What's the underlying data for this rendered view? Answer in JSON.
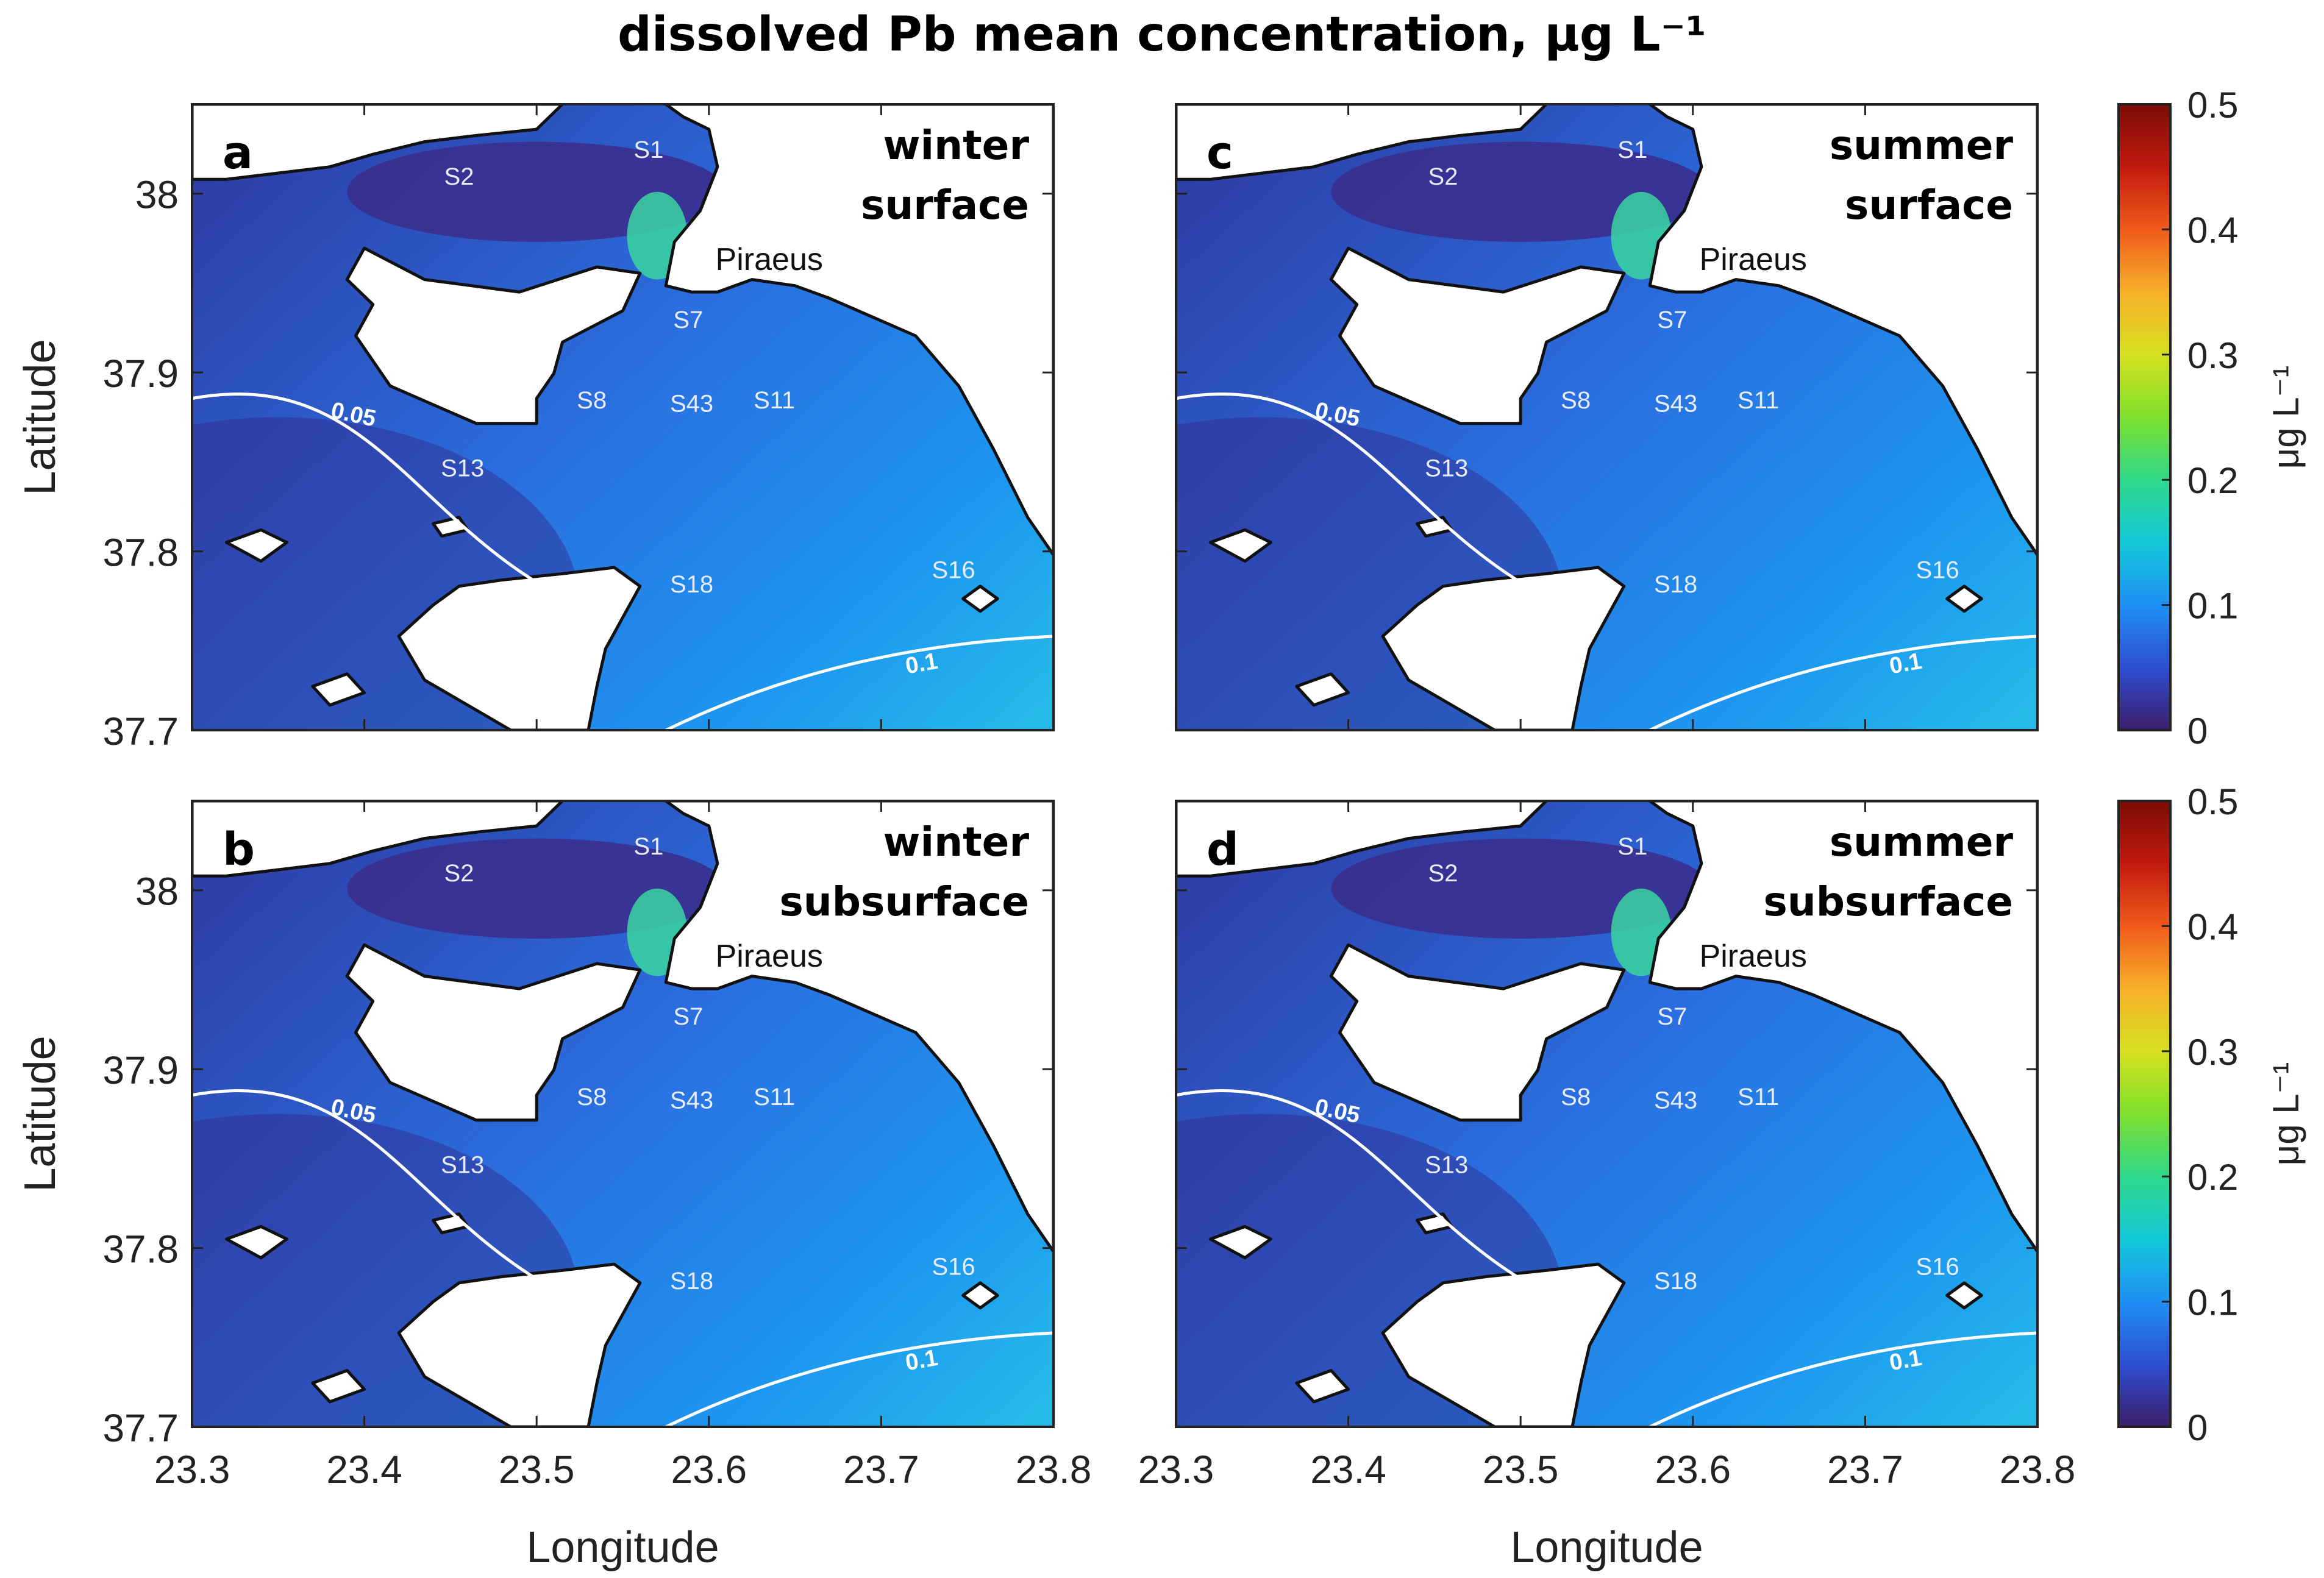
{
  "title": "dissolved Pb mean concentration, μg L⁻¹",
  "panels": [
    {
      "id": "a",
      "label": "a",
      "season": "winter",
      "layer": "surface"
    },
    {
      "id": "b",
      "label": "b",
      "season": "winter",
      "layer": "subsurface"
    },
    {
      "id": "c",
      "label": "c",
      "season": "summer",
      "layer": "surface"
    },
    {
      "id": "d",
      "label": "d",
      "season": "summer",
      "layer": "subsurface"
    }
  ],
  "axes": {
    "xlabel": "Longitude",
    "ylabel": "Latitude",
    "xlim": [
      23.3,
      23.8
    ],
    "ylim": [
      37.7,
      38.05
    ],
    "xticks": [
      "23.3",
      "23.4",
      "23.5",
      "23.6",
      "23.7",
      "23.8"
    ],
    "yticks": [
      "37.7",
      "37.8",
      "37.9",
      "38"
    ]
  },
  "colorbar": {
    "label": "μg L⁻¹",
    "ticks": [
      "0",
      "0.1",
      "0.2",
      "0.3",
      "0.4",
      "0.5"
    ],
    "range": [
      0,
      0.5
    ],
    "colormap": "jet",
    "colors": [
      "#3b1e6b",
      "#2f4fd4",
      "#1f8ff5",
      "#13c8d8",
      "#2fd88a",
      "#7ee02c",
      "#d6e01f",
      "#f7b02a",
      "#f05a1a",
      "#c21b10",
      "#7c0c06"
    ]
  },
  "map_labels": {
    "port": "Piraeus",
    "contour_005": "0.05",
    "contour_01": "0.1"
  },
  "stations": [
    {
      "name": "S1",
      "lon": 23.565,
      "lat": 38.02
    },
    {
      "name": "S2",
      "lon": 23.455,
      "lat": 38.005
    },
    {
      "name": "S7",
      "lon": 23.588,
      "lat": 37.925
    },
    {
      "name": "S8",
      "lon": 23.532,
      "lat": 37.88
    },
    {
      "name": "S43",
      "lon": 23.59,
      "lat": 37.878
    },
    {
      "name": "S11",
      "lon": 23.638,
      "lat": 37.88
    },
    {
      "name": "S13",
      "lon": 23.457,
      "lat": 37.842
    },
    {
      "name": "S16",
      "lon": 23.742,
      "lat": 37.785
    },
    {
      "name": "S18",
      "lon": 23.59,
      "lat": 37.777
    }
  ],
  "chart_data": {
    "type": "heatmap",
    "title": "dissolved Pb mean concentration, μg L⁻¹",
    "xlabel": "Longitude",
    "ylabel": "Latitude",
    "xlim": [
      23.3,
      23.8
    ],
    "ylim": [
      37.7,
      38.05
    ],
    "value_range": [
      0,
      0.5
    ],
    "contour_levels": [
      0.05,
      0.1
    ],
    "panels": [
      {
        "id": "a",
        "season": "winter",
        "depth": "surface",
        "min_approx": 0.03,
        "max_approx": 0.2
      },
      {
        "id": "b",
        "season": "winter",
        "depth": "subsurface",
        "min_approx": 0.03,
        "max_approx": 0.2
      },
      {
        "id": "c",
        "season": "summer",
        "depth": "surface",
        "min_approx": 0.02,
        "max_approx": 0.15
      },
      {
        "id": "d",
        "season": "summer",
        "depth": "subsurface",
        "min_approx": 0.03,
        "max_approx": 0.18
      }
    ]
  }
}
